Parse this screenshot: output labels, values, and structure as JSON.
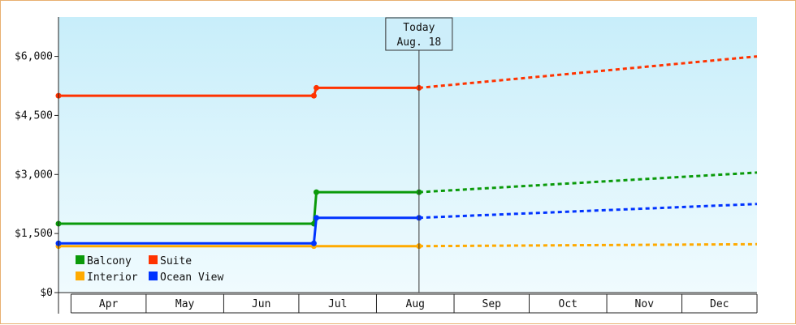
{
  "chart_data": {
    "type": "line",
    "y_ticks": [
      {
        "value": 0,
        "label": "$0"
      },
      {
        "value": 1500,
        "label": "$1,500"
      },
      {
        "value": 3000,
        "label": "$3,000"
      },
      {
        "value": 4500,
        "label": "$4,500"
      },
      {
        "value": 6000,
        "label": "$6,000"
      }
    ],
    "ylim": [
      0,
      7000
    ],
    "xlim": [
      "Mar 27",
      "Dec 31"
    ],
    "months": [
      "Apr",
      "May",
      "Jun",
      "Jul",
      "Aug",
      "Sep",
      "Oct",
      "Nov",
      "Dec"
    ],
    "today": {
      "line1": "Today",
      "line2": "Aug. 18",
      "date": "Aug 18"
    },
    "background": {
      "top": "#c8eefa",
      "bottom": "#f0fbfe"
    },
    "series": [
      {
        "name": "Balcony",
        "color": "#0a9a0a",
        "points": [
          [
            "Mar 27",
            1750
          ],
          [
            "Jul 7",
            1750
          ],
          [
            "Jul 8",
            2550
          ],
          [
            "Aug 18",
            2550
          ]
        ],
        "forecast": [
          [
            "Aug 18",
            2550
          ],
          [
            "Dec 31",
            3050
          ]
        ]
      },
      {
        "name": "Suite",
        "color": "#ff3300",
        "points": [
          [
            "Mar 27",
            5000
          ],
          [
            "Jul 7",
            5000
          ],
          [
            "Jul 8",
            5200
          ],
          [
            "Aug 18",
            5200
          ]
        ],
        "forecast": [
          [
            "Aug 18",
            5200
          ],
          [
            "Dec 31",
            6000
          ]
        ]
      },
      {
        "name": "Interior",
        "color": "#ffaa00",
        "points": [
          [
            "Mar 27",
            1180
          ],
          [
            "Jul 7",
            1180
          ],
          [
            "Aug 18",
            1180
          ]
        ],
        "forecast": [
          [
            "Aug 18",
            1180
          ],
          [
            "Dec 31",
            1230
          ]
        ]
      },
      {
        "name": "Ocean View",
        "color": "#0033ff",
        "points": [
          [
            "Mar 27",
            1250
          ],
          [
            "Jul 7",
            1250
          ],
          [
            "Jul 8",
            1900
          ],
          [
            "Aug 18",
            1900
          ]
        ],
        "forecast": [
          [
            "Aug 18",
            1900
          ],
          [
            "Dec 31",
            2250
          ]
        ]
      }
    ],
    "legend": {
      "position": "bottom-left",
      "order": [
        "Balcony",
        "Suite",
        "Interior",
        "Ocean View"
      ]
    }
  }
}
